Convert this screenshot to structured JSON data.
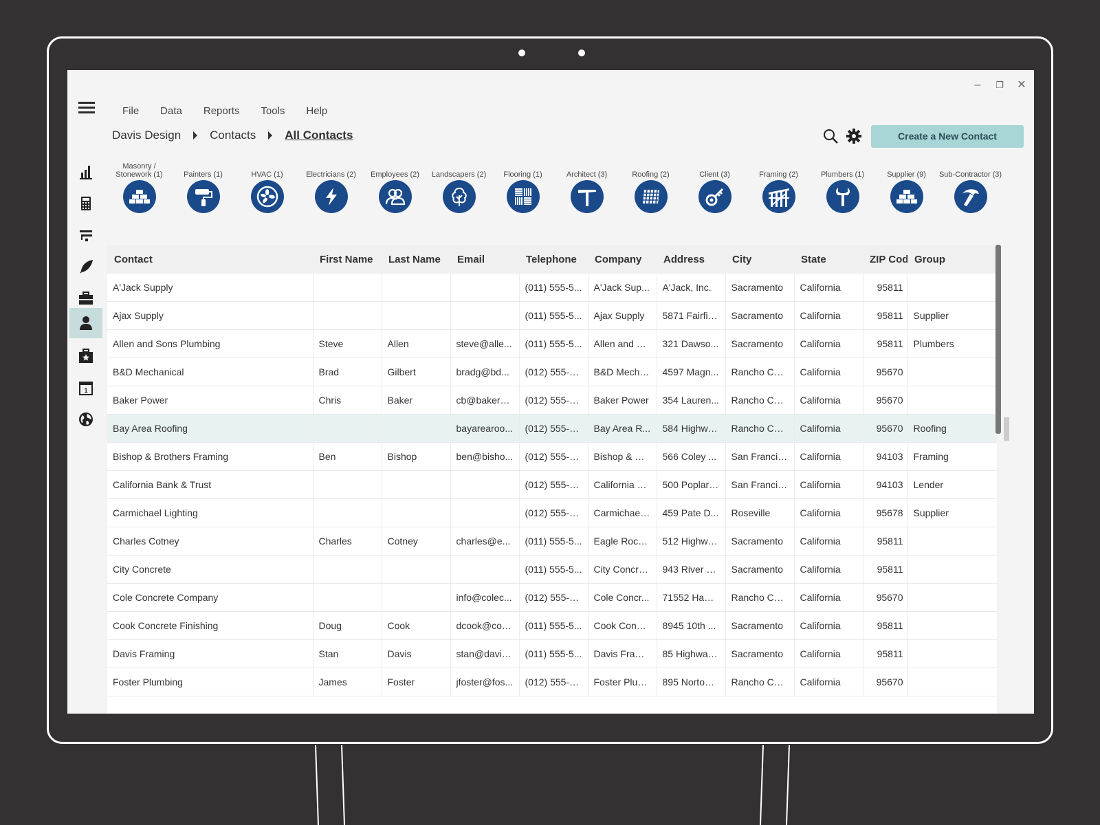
{
  "window": {
    "minimize": "–",
    "restore": "❐",
    "close": "✕"
  },
  "menu": [
    "File",
    "Data",
    "Reports",
    "Tools",
    "Help"
  ],
  "breadcrumb": {
    "root": "Davis Design",
    "section": "Contacts",
    "current": "All Contacts"
  },
  "actions": {
    "create_label": "Create a New Contact"
  },
  "sidebar": [
    {
      "icon": "bar-chart-icon"
    },
    {
      "icon": "calculator-icon"
    },
    {
      "icon": "filter-icon"
    },
    {
      "icon": "feather-icon"
    },
    {
      "icon": "briefcase-icon"
    },
    {
      "icon": "person-icon",
      "active": true
    },
    {
      "icon": "star-kit-icon"
    },
    {
      "icon": "calendar-icon"
    },
    {
      "icon": "globe-icon"
    }
  ],
  "categories": [
    {
      "label": "Masonry / Stonework (1)",
      "icon": "bricks-icon"
    },
    {
      "label": "Painters (1)",
      "icon": "paint-roller-icon"
    },
    {
      "label": "HVAC (1)",
      "icon": "fan-icon"
    },
    {
      "label": "Electricians (2)",
      "icon": "lightning-icon"
    },
    {
      "label": "Employees (2)",
      "icon": "people-icon"
    },
    {
      "label": "Landscapers (2)",
      "icon": "tree-icon"
    },
    {
      "label": "Flooring (1)",
      "icon": "parquet-icon"
    },
    {
      "label": "Architect (3)",
      "icon": "t-square-icon"
    },
    {
      "label": "Roofing (2)",
      "icon": "roof-tiles-icon"
    },
    {
      "label": "Client (3)",
      "icon": "key-icon"
    },
    {
      "label": "Framing (2)",
      "icon": "frame-icon"
    },
    {
      "label": "Plumbers (1)",
      "icon": "wrench-icon"
    },
    {
      "label": "Supplier (9)",
      "icon": "bricks-icon"
    },
    {
      "label": "Sub-Contractor (3)",
      "icon": "hammer-icon"
    }
  ],
  "table": {
    "columns": [
      "Contact",
      "First Name",
      "Last Name",
      "Email",
      "Telephone",
      "Company",
      "Address",
      "City",
      "State",
      "ZIP Code",
      "Group"
    ],
    "rows": [
      [
        "A'Jack Supply",
        "",
        "",
        "",
        "(011) 555-5...",
        "A'Jack Sup...",
        "A'Jack, Inc.",
        "Sacramento",
        "California",
        "95811",
        ""
      ],
      [
        "Ajax Supply",
        "",
        "",
        "",
        "(011) 555-5...",
        "Ajax Supply",
        "5871 Fairfie...",
        "Sacramento",
        "California",
        "95811",
        "Supplier"
      ],
      [
        "Allen and Sons Plumbing",
        "Steve",
        "Allen",
        "steve@alle...",
        "(011) 555-5...",
        "Allen and S...",
        "321 Dawso...",
        "Sacramento",
        "California",
        "95811",
        "Plumbers"
      ],
      [
        "B&D Mechanical",
        "Brad",
        "Gilbert",
        "bradg@bd...",
        "(012) 555-5...",
        "B&D Mecha...",
        "4597 Magn...",
        "Rancho Cor...",
        "California",
        "95670",
        ""
      ],
      [
        "Baker Power",
        "Chris",
        "Baker",
        "cb@bakerp...",
        "(012) 555-5...",
        "Baker Power",
        "354 Lauren...",
        "Rancho Cor...",
        "California",
        "95670",
        ""
      ],
      [
        "Bay Area Roofing",
        "",
        "",
        "bayarearoo...",
        "(012) 555-5...",
        "Bay Area R...",
        "584 Highwa...",
        "Rancho Cor...",
        "California",
        "95670",
        "Roofing"
      ],
      [
        "Bishop & Brothers Framing",
        "Ben",
        "Bishop",
        "ben@bisho...",
        "(012) 555-5...",
        "Bishop & Br...",
        "566 Coley ...",
        "San Francis...",
        "California",
        "94103",
        "Framing"
      ],
      [
        "California Bank & Trust",
        "",
        "",
        "",
        "(012) 555-5...",
        "California B...",
        "500 Poplar ...",
        "San Francis...",
        "California",
        "94103",
        "Lender"
      ],
      [
        "Carmichael Lighting",
        "",
        "",
        "",
        "(012) 555-5...",
        "Carmichael ...",
        "459 Pate D...",
        "Roseville",
        "California",
        "95678",
        "Supplier"
      ],
      [
        "Charles Cotney",
        "Charles",
        "Cotney",
        "charles@e...",
        "(011) 555-5...",
        "Eagle Rock...",
        "512 Highwa...",
        "Sacramento",
        "California",
        "95811",
        ""
      ],
      [
        "City Concrete",
        "",
        "",
        "",
        "(011) 555-5...",
        "City Concrete",
        "943 River R...",
        "Sacramento",
        "California",
        "95811",
        ""
      ],
      [
        "Cole Concrete Company",
        "",
        "",
        "info@colec...",
        "(012) 555-5...",
        "Cole Concr...",
        "71552 Ham...",
        "Rancho Cor...",
        "California",
        "95670",
        ""
      ],
      [
        "Cook Concrete Finishing",
        "Doug",
        "Cook",
        "dcook@coo...",
        "(011) 555-5...",
        "Cook Concr...",
        "8945 10th ...",
        "Sacramento",
        "California",
        "95811",
        ""
      ],
      [
        "Davis Framing",
        "Stan",
        "Davis",
        "stan@davis...",
        "(011) 555-5...",
        "Davis Frami...",
        "85 Highway...",
        "Sacramento",
        "California",
        "95811",
        ""
      ],
      [
        "Foster Plumbing",
        "James",
        "Foster",
        "jfoster@fos...",
        "(012) 555-5...",
        "Foster Plum...",
        "895 Norton ...",
        "Rancho Cor...",
        "California",
        "95670",
        ""
      ]
    ],
    "selected_row": 5
  }
}
